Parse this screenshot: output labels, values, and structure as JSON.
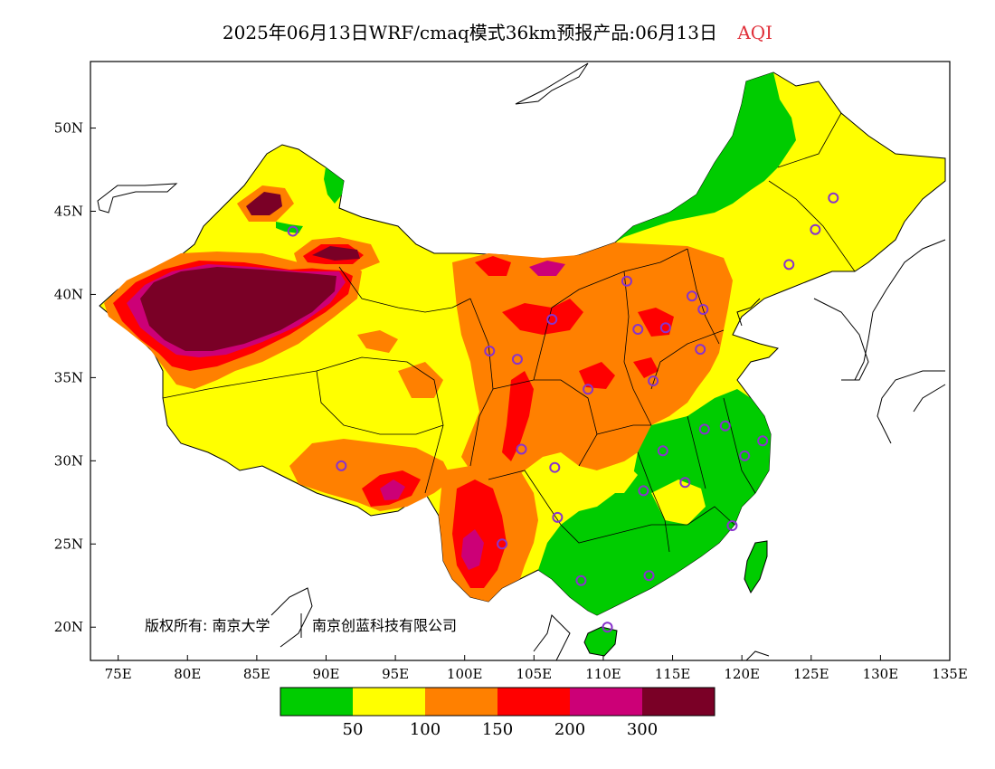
{
  "header": {
    "title": "2025年06月13日WRF/cmaq模式36km预报产品:06月13日",
    "variable": "AQI"
  },
  "colors": {
    "level1": "#00cc00",
    "level2": "#ffff00",
    "level3": "#ff8000",
    "level4": "#ff0000",
    "level5": "#cc0077",
    "level6": "#7a0026",
    "station": "#8833cc"
  },
  "map": {
    "lon_range": [
      73,
      135
    ],
    "lat_range": [
      18,
      54
    ],
    "x_ticks": [
      "75E",
      "80E",
      "85E",
      "90E",
      "95E",
      "100E",
      "105E",
      "110E",
      "115E",
      "120E",
      "125E",
      "130E",
      "135E"
    ],
    "y_ticks": [
      "20N",
      "25N",
      "30N",
      "35N",
      "40N",
      "45N",
      "50N"
    ],
    "copyright": "版权所有: 南京大学",
    "copyright2": "南京创蓝科技有限公司"
  },
  "legend": {
    "labels": [
      "50",
      "100",
      "150",
      "200",
      "300"
    ]
  }
}
